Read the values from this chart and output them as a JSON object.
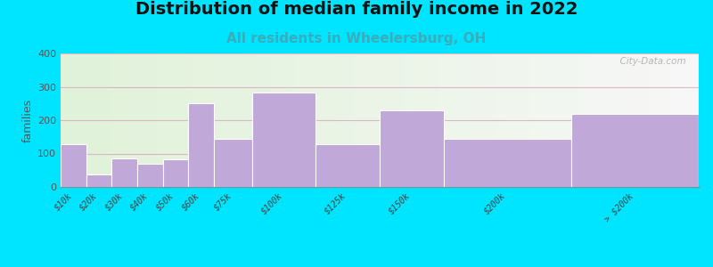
{
  "title": "Distribution of median family income in 2022",
  "subtitle": "All residents in Wheelersburg, OH",
  "ylabel": "families",
  "categories": [
    "$10k",
    "$20k",
    "$30k",
    "$40k",
    "$50k",
    "$60k",
    "$75k",
    "$100k",
    "$125k",
    "$150k",
    "$200k",
    "> $200k"
  ],
  "values": [
    128,
    38,
    85,
    70,
    83,
    250,
    143,
    283,
    128,
    230,
    143,
    218
  ],
  "bar_edges": [
    0,
    10,
    20,
    30,
    40,
    50,
    60,
    75,
    100,
    125,
    150,
    200,
    250
  ],
  "bar_color": "#c0a8d8",
  "ylim": [
    0,
    400
  ],
  "yticks": [
    0,
    100,
    200,
    300,
    400
  ],
  "background_outer": "#00e5ff",
  "title_fontsize": 14,
  "subtitle_fontsize": 11,
  "watermark": "  City-Data.com"
}
